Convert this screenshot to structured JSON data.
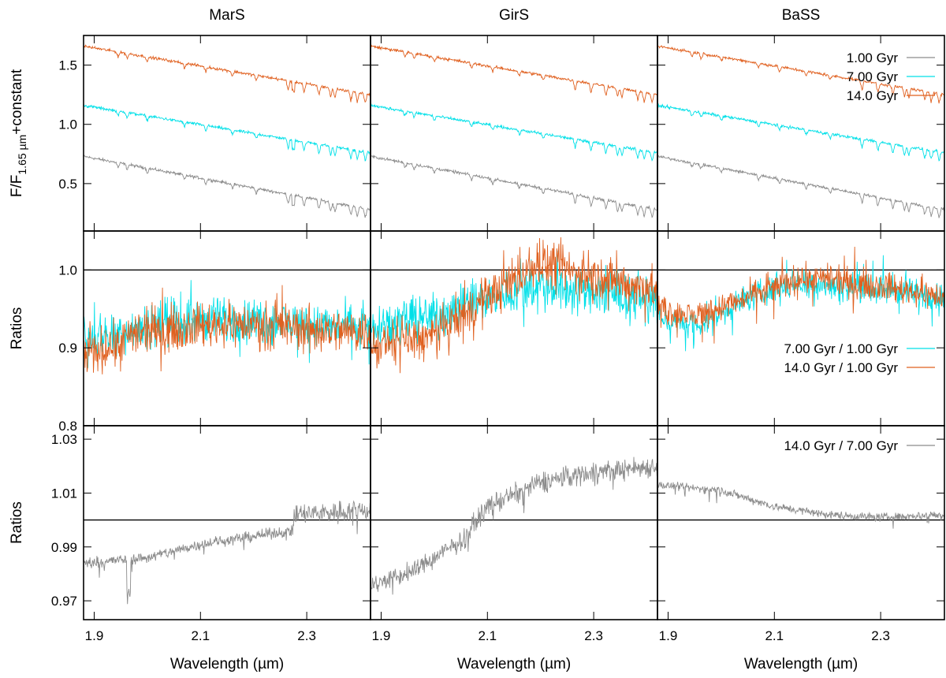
{
  "chart_data": {
    "type": "line",
    "columns": [
      "MarS",
      "GirS",
      "BaSS"
    ],
    "colors": {
      "1.00 Gyr": "#8c8c8c",
      "7.00 Gyr": "#00e0e8",
      "14.0 Gyr": "#e0601f",
      "ratio_7_1": "#00e0e8",
      "ratio_14_1": "#e0601f",
      "ratio_14_7": "#8c8c8c"
    },
    "x_axis": {
      "label": "Wavelength (µm)",
      "xlim": [
        1.88,
        2.42
      ],
      "ticks": [
        "1.9",
        "2.1",
        "2.3"
      ],
      "tick_values": [
        1.9,
        2.1,
        2.3
      ]
    },
    "rows": [
      {
        "ylabel": "F/F1.65 µm+constant",
        "ylabel_main": "F/F",
        "ylabel_sub": "1.65 µm",
        "ylabel_suffix": "+constant",
        "ylim": [
          0.1,
          1.75
        ],
        "yticks": [
          "0.5",
          "1.0",
          "1.5"
        ],
        "ytick_values": [
          0.5,
          1.0,
          1.5
        ],
        "legend": [
          "1.00 Gyr",
          "7.00 Gyr",
          "14.0 Gyr"
        ],
        "series": [
          {
            "name": "1.00 Gyr",
            "start": 0.73,
            "end": 0.28
          },
          {
            "name": "7.00 Gyr",
            "start": 1.16,
            "end": 0.76
          },
          {
            "name": "14.0 Gyr",
            "start": 1.66,
            "end": 1.25
          }
        ]
      },
      {
        "ylabel": "Ratios",
        "ylim": [
          0.8,
          1.05
        ],
        "yticks": [
          "0.8",
          "0.9",
          "1.0"
        ],
        "ytick_values": [
          0.8,
          0.9,
          1.0
        ],
        "reference_line": 1.0,
        "legend": [
          "7.00 Gyr / 1.00 Gyr",
          "14.0 Gyr / 1.00 Gyr"
        ],
        "series": [
          {
            "name": "7.00 Gyr / 1.00 Gyr",
            "panels": [
              {
                "x": [
                  1.88,
                  2.0,
                  2.1,
                  2.2,
                  2.3,
                  2.42
                ],
                "y": [
                  0.91,
                  0.93,
                  0.935,
                  0.935,
                  0.93,
                  0.925
                ]
              },
              {
                "x": [
                  1.88,
                  2.0,
                  2.1,
                  2.2,
                  2.3,
                  2.42
                ],
                "y": [
                  0.93,
                  0.94,
                  0.965,
                  0.98,
                  0.97,
                  0.96
                ]
              },
              {
                "x": [
                  1.88,
                  1.95,
                  2.05,
                  2.15,
                  2.3,
                  2.42
                ],
                "y": [
                  0.94,
                  0.925,
                  0.965,
                  0.985,
                  0.975,
                  0.965
                ]
              }
            ]
          },
          {
            "name": "14.0 Gyr / 1.00 Gyr",
            "panels": [
              {
                "x": [
                  1.88,
                  2.0,
                  2.1,
                  2.2,
                  2.3,
                  2.42
                ],
                "y": [
                  0.89,
                  0.92,
                  0.93,
                  0.93,
                  0.925,
                  0.92
                ]
              },
              {
                "x": [
                  1.88,
                  2.0,
                  2.1,
                  2.2,
                  2.3,
                  2.42
                ],
                "y": [
                  0.9,
                  0.915,
                  0.965,
                  1.01,
                  0.99,
                  0.975
                ]
              },
              {
                "x": [
                  1.88,
                  1.95,
                  2.05,
                  2.15,
                  2.3,
                  2.42
                ],
                "y": [
                  0.95,
                  0.94,
                  0.965,
                  0.99,
                  0.98,
                  0.965
                ]
              }
            ]
          }
        ]
      },
      {
        "ylabel": "Ratios",
        "ylim": [
          0.963,
          1.035
        ],
        "yticks": [
          "0.97",
          "0.99",
          "1.01",
          "1.03"
        ],
        "ytick_values": [
          0.97,
          0.99,
          1.01,
          1.03
        ],
        "reference_line": 1.0,
        "legend": [
          "14.0 Gyr / 7.00 Gyr"
        ],
        "series": [
          {
            "name": "14.0 Gyr / 7.00 Gyr",
            "panels": [
              {
                "x": [
                  1.88,
                  2.0,
                  2.1,
                  2.2,
                  2.27,
                  2.28,
                  2.42
                ],
                "y": [
                  0.984,
                  0.986,
                  0.991,
                  0.994,
                  0.996,
                  1.002,
                  1.004
                ]
              },
              {
                "x": [
                  1.88,
                  1.95,
                  2.05,
                  2.1,
                  2.2,
                  2.3,
                  2.42
                ],
                "y": [
                  0.976,
                  0.98,
                  0.992,
                  1.005,
                  1.014,
                  1.018,
                  1.02
                ]
              },
              {
                "x": [
                  1.88,
                  2.0,
                  2.1,
                  2.2,
                  2.3,
                  2.42
                ],
                "y": [
                  1.013,
                  1.011,
                  1.005,
                  1.002,
                  1.001,
                  1.002
                ]
              }
            ]
          }
        ]
      }
    ]
  }
}
